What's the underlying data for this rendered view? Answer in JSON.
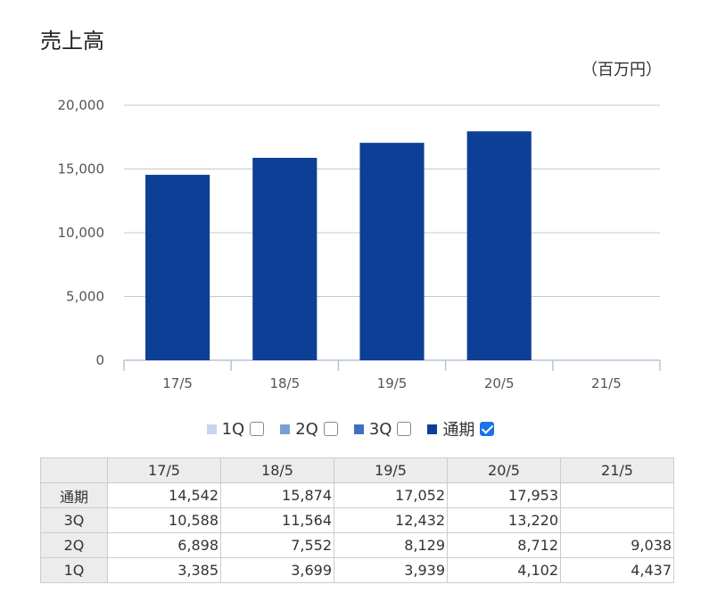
{
  "title": "売上高",
  "unit": "（百万円）",
  "legend": [
    {
      "label": "1Q",
      "color": "#c5d5f1",
      "checked": false
    },
    {
      "label": "2Q",
      "color": "#7a9fd4",
      "checked": false
    },
    {
      "label": "3Q",
      "color": "#3d6fc1",
      "checked": false
    },
    {
      "label": "通期",
      "color": "#0d3f96",
      "checked": true
    }
  ],
  "chart_data": {
    "type": "bar",
    "title": "売上高",
    "ylabel": "（百万円）",
    "categories": [
      "17/5",
      "18/5",
      "19/5",
      "20/5",
      "21/5"
    ],
    "series": [
      {
        "name": "通期",
        "values": [
          14542,
          15874,
          17052,
          17953,
          null
        ]
      }
    ],
    "ylim": [
      0,
      20000
    ],
    "yticks": [
      "0",
      "5,000",
      "10,000",
      "15,000",
      "20,000"
    ],
    "bar_color": "#0d3f96",
    "grid": true
  },
  "table": {
    "headers": [
      "",
      "17/5",
      "18/5",
      "19/5",
      "20/5",
      "21/5"
    ],
    "rows": [
      {
        "label": "通期",
        "values": [
          "14,542",
          "15,874",
          "17,052",
          "17,953",
          ""
        ]
      },
      {
        "label": "3Q",
        "values": [
          "10,588",
          "11,564",
          "12,432",
          "13,220",
          ""
        ]
      },
      {
        "label": "2Q",
        "values": [
          "6,898",
          "7,552",
          "8,129",
          "8,712",
          "9,038"
        ]
      },
      {
        "label": "1Q",
        "values": [
          "3,385",
          "3,699",
          "3,939",
          "4,102",
          "4,437"
        ]
      }
    ]
  }
}
